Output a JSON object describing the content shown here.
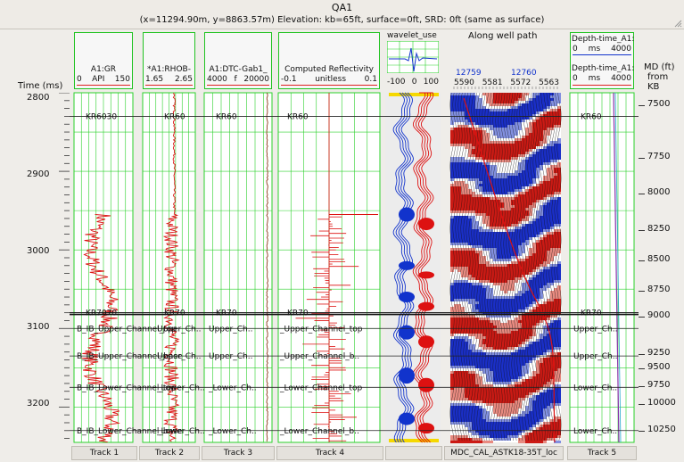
{
  "window": {
    "title": "QA1",
    "subtitle": "(x=11294.90m, y=8863.57m) Elevation: kb=65ft, surface=0ft, SRD: 0ft (same as surface)"
  },
  "time_axis": {
    "label": "Time (ms)",
    "range_ms": [
      2800,
      3245
    ],
    "ticks": [
      "2800",
      "2900",
      "3000",
      "3100",
      "3200"
    ]
  },
  "md_axis": {
    "label_lines": [
      "MD (ft)",
      "from",
      "KB"
    ],
    "ticks": [
      "7500",
      "7750",
      "8000",
      "8250",
      "8500",
      "8750",
      "9000",
      "9250",
      "9500",
      "9750",
      "10000",
      "10250"
    ]
  },
  "tracks": [
    {
      "name": "A1:GR",
      "min": "0",
      "unit": "API",
      "max": "150",
      "footer": "Track 1"
    },
    {
      "name": "*A1:RHOB-",
      "min": "1.65",
      "unit": "",
      "max": "2.65",
      "footer": "Track 2"
    },
    {
      "name": "A1:DTC-Gab1_",
      "min": "4000",
      "unit": "f",
      "max": "20000",
      "footer": "Track 3"
    },
    {
      "name": "Computed Reflectivity",
      "min": "-0.1",
      "unit": "unitless",
      "max": "0.1",
      "footer": "Track 4"
    }
  ],
  "wavelet": {
    "title": "wavelet_use",
    "scale": [
      "-100",
      "0",
      "100"
    ]
  },
  "seismic": {
    "title": "Along well path",
    "cdp": [
      "12759",
      "12760"
    ],
    "traces": [
      "5590",
      "5581",
      "5572",
      "5563"
    ],
    "footer": "MDC_CAL_ASTK18-35T_loc"
  },
  "track5": {
    "name1": "Depth-time_A1:",
    "min1": "0",
    "unit1": "ms",
    "max1": "4000",
    "name2": "Depth-time_A1:",
    "min2": "0",
    "unit2": "ms",
    "max2": "4000",
    "footer": "Track 5"
  },
  "tops": [
    {
      "t1": "KR6030",
      "t2": "KR60",
      "t3": "KR60",
      "t4": "KR60",
      "t5": "KR60"
    },
    {
      "t1": "KR7070",
      "t2": "KR70",
      "t3": "KR70",
      "t4": "KR70",
      "t5": "KR70"
    },
    {
      "t1": "B_IB_Upper_Channel_top",
      "t2": "Upper_Ch..",
      "t3": "Upper_Ch..",
      "t4": "_Upper_Channel_top",
      "t5": "Upper_Ch.."
    },
    {
      "t1": "B_IB_Upper_Channel_base",
      "t2": "Upper_Ch..",
      "t3": "Upper_Ch..",
      "t4": "_Upper_Channel_b..",
      "t5": "Upper_Ch.."
    },
    {
      "t1": "B_IB_Lower_Channel_top",
      "t2": "_Lower_Ch..",
      "t3": "_Lower_Ch..",
      "t4": "_Lower_Channel_top",
      "t5": "Lower_Ch.."
    },
    {
      "t1": "B_IB_Lower_Channel_base",
      "t2": "_Lower_Ch..",
      "t3": "_Lower_Ch..",
      "t4": "_Lower_Channel_b..",
      "t5": "Lower_Ch.."
    }
  ],
  "colors": {
    "grid": "#2bd12b",
    "curve": "#dd1111",
    "top_line": "#222222",
    "wiggle_pos": "#dd1111",
    "wiggle_neg": "#1111cc"
  }
}
